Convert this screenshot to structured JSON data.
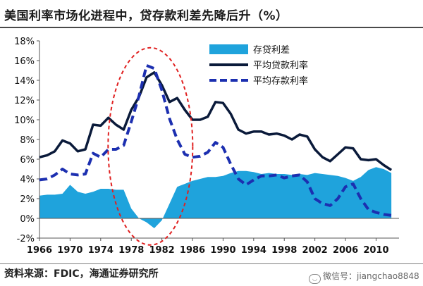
{
  "title": "美国利率市场化进程中，贷存款利差先降后升（%）",
  "source": "资料来源：FDIC，海通证券研究所",
  "watermark": "微信号：jiangchao8848",
  "colors": {
    "spread": "#1fa3dc",
    "loan": "#0a1a3a",
    "deposit": "#1c2fb0",
    "highlight": "#e02020"
  },
  "chart_data": {
    "type": "line",
    "title": "美国利率市场化进程中，贷存款利差先降后升（%）",
    "xlabel": "",
    "ylabel": "",
    "xlim": [
      1966,
      2013
    ],
    "ylim": [
      -2,
      18
    ],
    "y_ticks": [
      -2,
      0,
      2,
      4,
      6,
      8,
      10,
      12,
      14,
      16,
      18
    ],
    "y_tick_labels": [
      "-2%",
      "0%",
      "2%",
      "4%",
      "6%",
      "8%",
      "10%",
      "12%",
      "14%",
      "16%",
      "18%"
    ],
    "x_ticks": [
      1966,
      1970,
      1974,
      1978,
      1982,
      1986,
      1990,
      1994,
      1998,
      2002,
      2006,
      2010
    ],
    "x_tick_labels": [
      "1966",
      "1970",
      "1974",
      "1978",
      "1982",
      "1986",
      "1990",
      "1994",
      "1998",
      "2002",
      "2006",
      "2010"
    ],
    "grid": false,
    "legend_position": "top-right",
    "annotation": "red dashed ellipse highlighting 1977–1984",
    "series": [
      {
        "name": "存贷利差",
        "kind": "area",
        "x": [
          1966,
          1967,
          1968,
          1969,
          1970,
          1971,
          1972,
          1973,
          1974,
          1975,
          1976,
          1977,
          1978,
          1979,
          1980,
          1981,
          1982,
          1983,
          1984,
          1985,
          1986,
          1987,
          1988,
          1989,
          1990,
          1991,
          1992,
          1993,
          1994,
          1995,
          1996,
          1997,
          1998,
          1999,
          2000,
          2001,
          2002,
          2003,
          2004,
          2005,
          2006,
          2007,
          2008,
          2009,
          2010,
          2011,
          2012
        ],
        "values": [
          2.3,
          2.4,
          2.4,
          2.5,
          3.4,
          2.7,
          2.5,
          2.7,
          3.0,
          3.0,
          2.9,
          2.9,
          1.0,
          0.0,
          -0.4,
          -1.0,
          -0.2,
          1.5,
          3.2,
          3.5,
          3.8,
          4.0,
          4.2,
          4.2,
          4.3,
          4.6,
          4.8,
          4.8,
          4.7,
          4.5,
          4.6,
          4.5,
          4.5,
          4.4,
          4.5,
          4.4,
          4.6,
          4.5,
          4.4,
          4.3,
          4.1,
          3.8,
          4.2,
          4.9,
          5.2,
          5.0,
          4.6
        ]
      },
      {
        "name": "平均贷款利率",
        "kind": "line",
        "x": [
          1966,
          1967,
          1968,
          1969,
          1970,
          1971,
          1972,
          1973,
          1974,
          1975,
          1976,
          1977,
          1978,
          1979,
          1980,
          1981,
          1982,
          1983,
          1984,
          1985,
          1986,
          1987,
          1988,
          1989,
          1990,
          1991,
          1992,
          1993,
          1994,
          1995,
          1996,
          1997,
          1998,
          1999,
          2000,
          2001,
          2002,
          2003,
          2004,
          2005,
          2006,
          2007,
          2008,
          2009,
          2010,
          2011,
          2012
        ],
        "values": [
          6.2,
          6.4,
          6.8,
          7.9,
          7.6,
          6.8,
          7.0,
          9.5,
          9.4,
          10.2,
          9.5,
          9.0,
          11.0,
          12.3,
          14.3,
          14.8,
          13.5,
          11.8,
          12.2,
          11.0,
          10.0,
          10.0,
          10.3,
          11.8,
          11.7,
          10.6,
          9.0,
          8.6,
          8.8,
          8.8,
          8.5,
          8.6,
          8.4,
          8.0,
          8.5,
          8.3,
          7.0,
          6.2,
          5.8,
          6.5,
          7.2,
          7.1,
          6.0,
          5.9,
          6.0,
          5.4,
          4.9
        ]
      },
      {
        "name": "平均存款利率",
        "kind": "dashed-line",
        "x": [
          1966,
          1967,
          1968,
          1969,
          1970,
          1971,
          1972,
          1973,
          1974,
          1975,
          1976,
          1977,
          1978,
          1979,
          1980,
          1981,
          1982,
          1983,
          1984,
          1985,
          1986,
          1987,
          1988,
          1989,
          1990,
          1991,
          1992,
          1993,
          1994,
          1995,
          1996,
          1997,
          1998,
          1999,
          2000,
          2001,
          2002,
          2003,
          2004,
          2005,
          2006,
          2007,
          2008,
          2009,
          2010,
          2011,
          2012
        ],
        "values": [
          3.9,
          4.0,
          4.4,
          5.0,
          4.5,
          4.4,
          4.5,
          6.6,
          6.2,
          7.0,
          7.0,
          7.4,
          9.8,
          12.4,
          15.5,
          15.2,
          13.0,
          10.1,
          8.0,
          6.5,
          6.2,
          6.3,
          6.7,
          7.7,
          7.2,
          5.5,
          4.0,
          3.4,
          3.9,
          4.3,
          4.3,
          4.4,
          4.1,
          4.3,
          4.4,
          3.7,
          2.0,
          1.5,
          1.3,
          2.0,
          3.2,
          3.5,
          2.0,
          0.9,
          0.6,
          0.4,
          0.3
        ]
      }
    ]
  }
}
